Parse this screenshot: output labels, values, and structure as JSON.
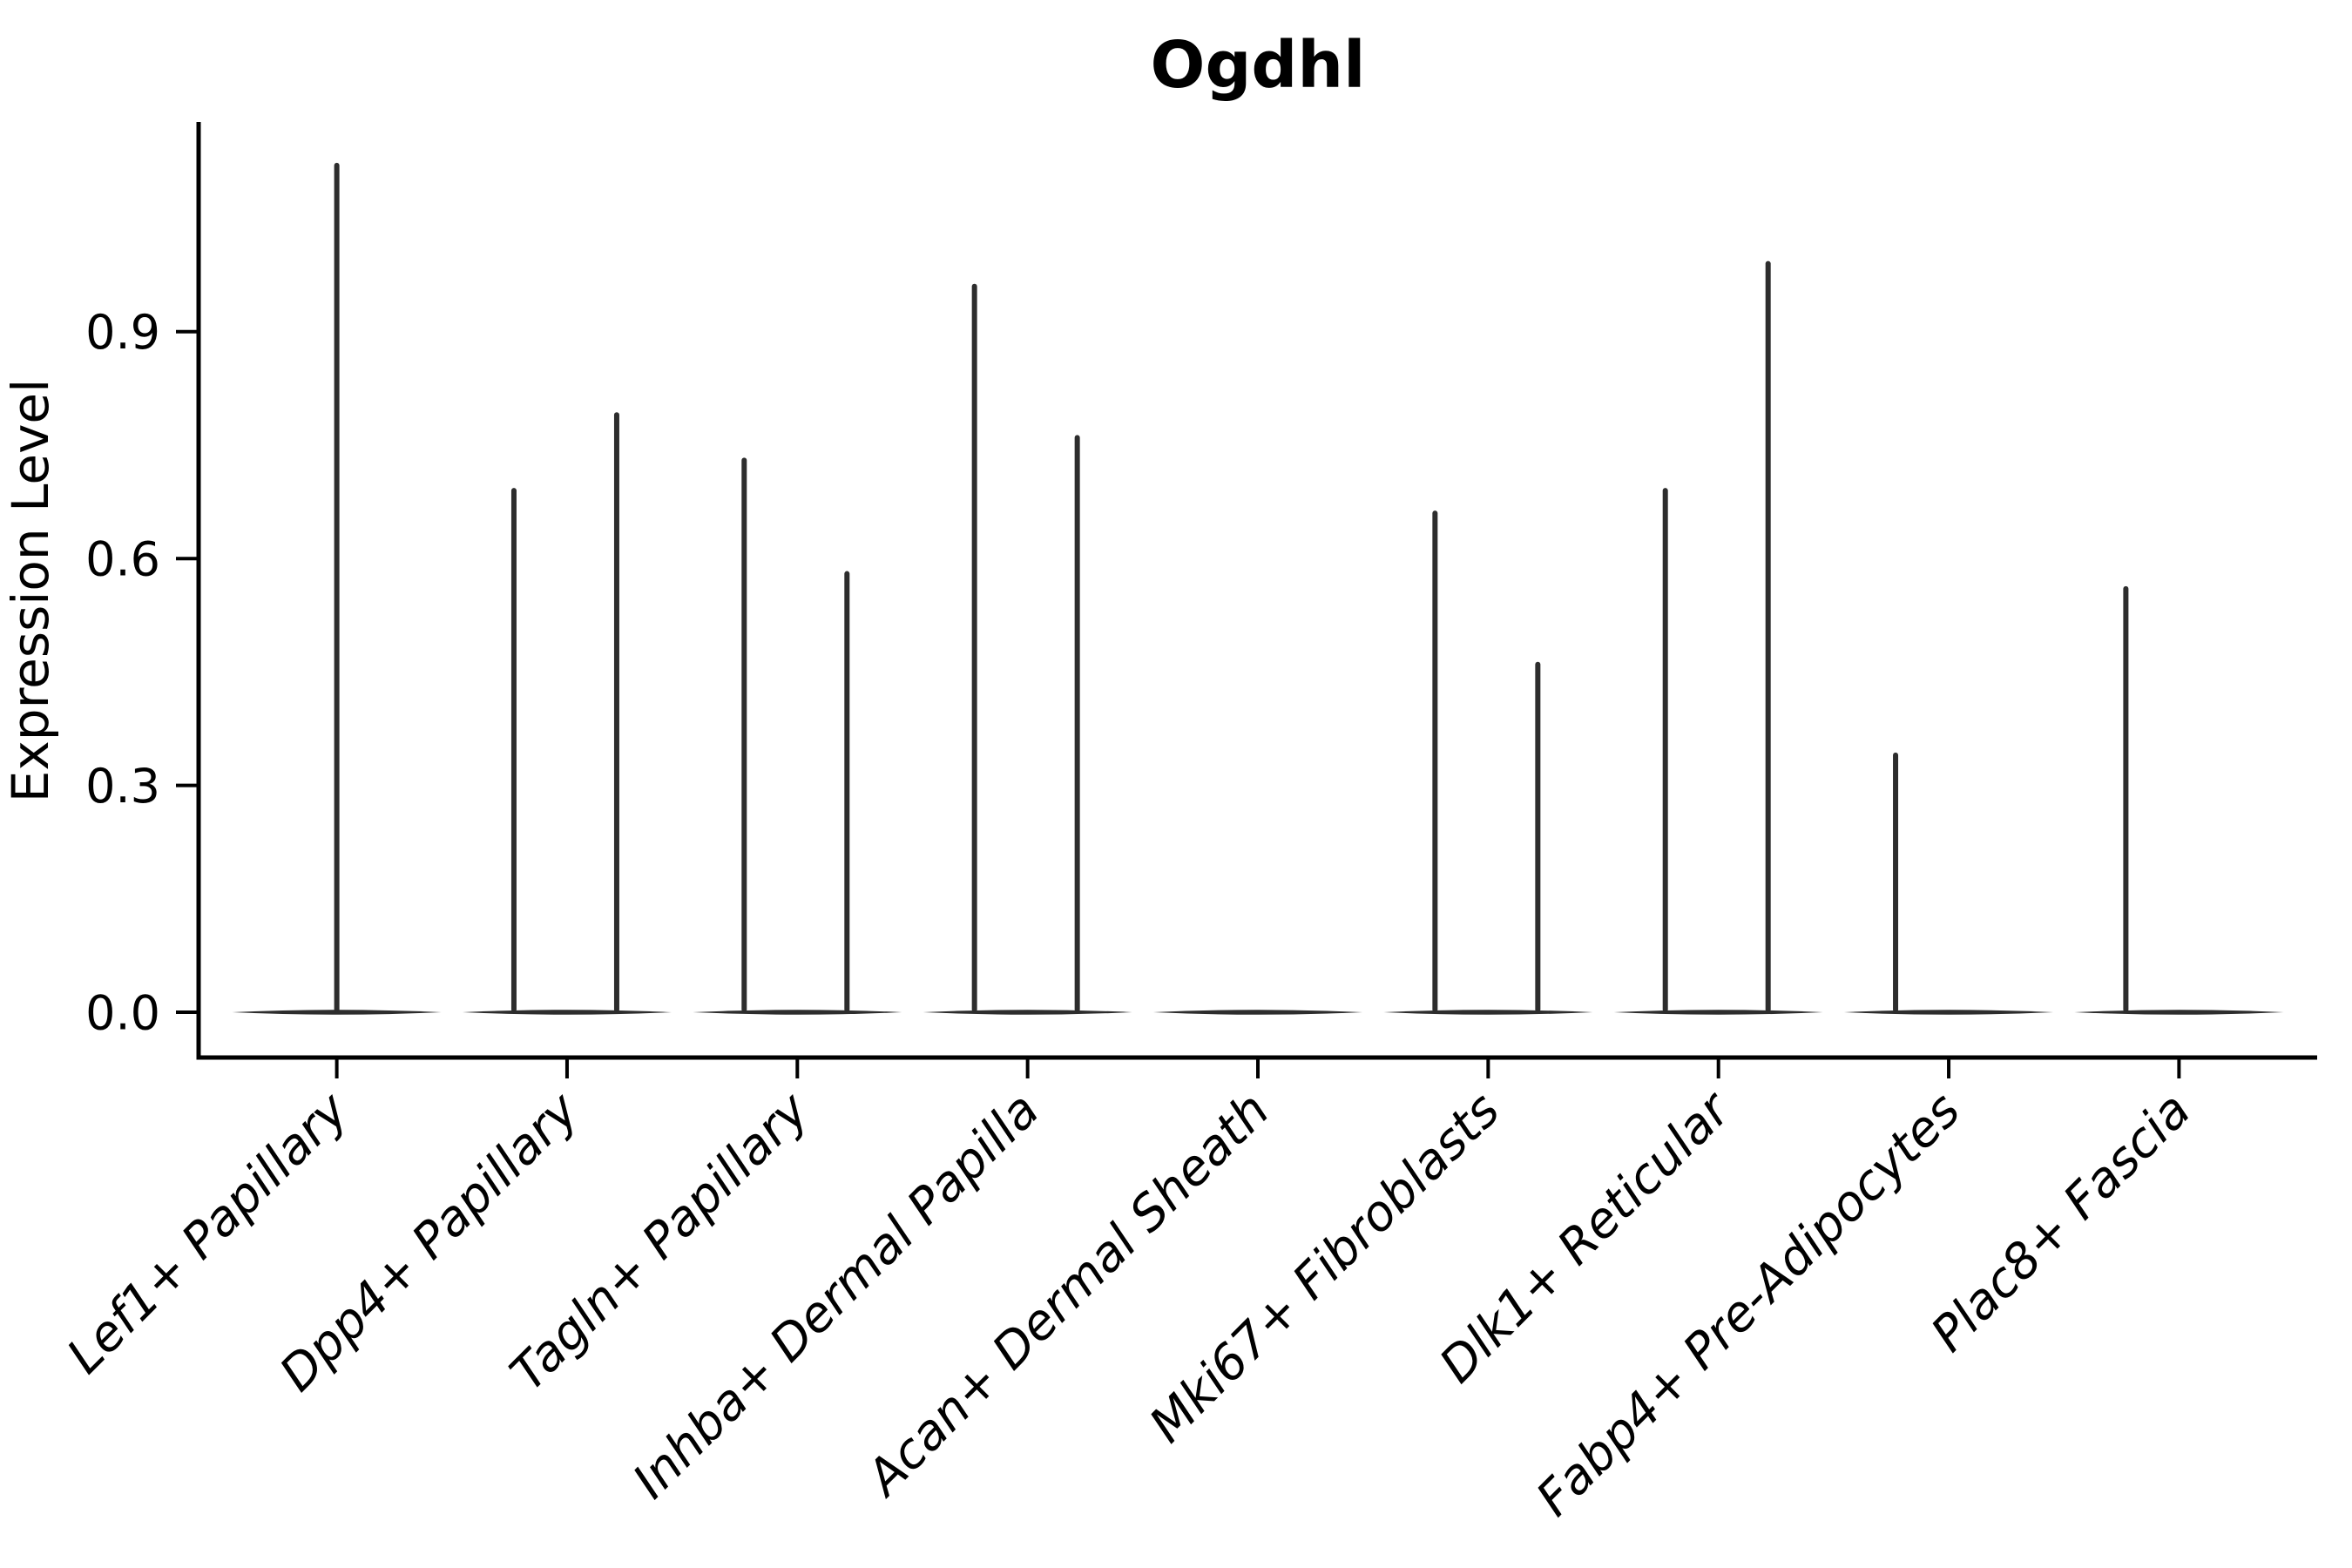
{
  "chart_data": {
    "type": "violin",
    "title": "Ogdhl",
    "xlabel": "",
    "ylabel": "Expression Level",
    "yticks": [
      {
        "label": "0.0",
        "value": 0.0
      },
      {
        "label": "0.3",
        "value": 0.3
      },
      {
        "label": "0.6",
        "value": 0.6
      },
      {
        "label": "0.9",
        "value": 0.9
      }
    ],
    "ylim": [
      0.0,
      1.18
    ],
    "grid": false,
    "legend_position": "none",
    "line_color": "#2d2d2d",
    "axis_color": "#000000",
    "background_color": "#ffffff",
    "categories": [
      "Lef1+ Papillary",
      "Dpp4+ Papillary",
      "Tagln+ Papillary",
      "Inhba+ Dermal Papilla",
      "Acan+ Dermal Sheath",
      "Mki67+ Fibroblasts",
      "Dlk1+ Reticular",
      "Fabp4+ Pre-Adipocytes",
      "Plac8+ Fascia"
    ],
    "violins": [
      {
        "category": "Lef1+ Papillary",
        "baseline_value": 0.0,
        "spikes": [
          {
            "position": "center",
            "max": 1.12
          }
        ]
      },
      {
        "category": "Dpp4+ Papillary",
        "baseline_value": 0.0,
        "spikes": [
          {
            "position": "left",
            "max": 0.69
          },
          {
            "position": "right",
            "max": 0.79
          }
        ]
      },
      {
        "category": "Tagln+ Papillary",
        "baseline_value": 0.0,
        "spikes": [
          {
            "position": "left",
            "max": 0.73
          },
          {
            "position": "right",
            "max": 0.58
          }
        ]
      },
      {
        "category": "Inhba+ Dermal Papilla",
        "baseline_value": 0.0,
        "spikes": [
          {
            "position": "left",
            "max": 0.96
          },
          {
            "position": "right",
            "max": 0.76
          }
        ]
      },
      {
        "category": "Acan+ Dermal Sheath",
        "baseline_value": 0.0,
        "spikes": []
      },
      {
        "category": "Mki67+ Fibroblasts",
        "baseline_value": 0.0,
        "spikes": [
          {
            "position": "left",
            "max": 0.66
          },
          {
            "position": "right",
            "max": 0.46
          }
        ]
      },
      {
        "category": "Dlk1+ Reticular",
        "baseline_value": 0.0,
        "spikes": [
          {
            "position": "left",
            "max": 0.69
          },
          {
            "position": "right",
            "max": 0.99
          }
        ]
      },
      {
        "category": "Fabp4+ Pre-Adipocytes",
        "baseline_value": 0.0,
        "spikes": [
          {
            "position": "left",
            "max": 0.34
          }
        ]
      },
      {
        "category": "Plac8+ Fascia",
        "baseline_value": 0.0,
        "spikes": [
          {
            "position": "left",
            "max": 0.56
          }
        ]
      }
    ]
  }
}
